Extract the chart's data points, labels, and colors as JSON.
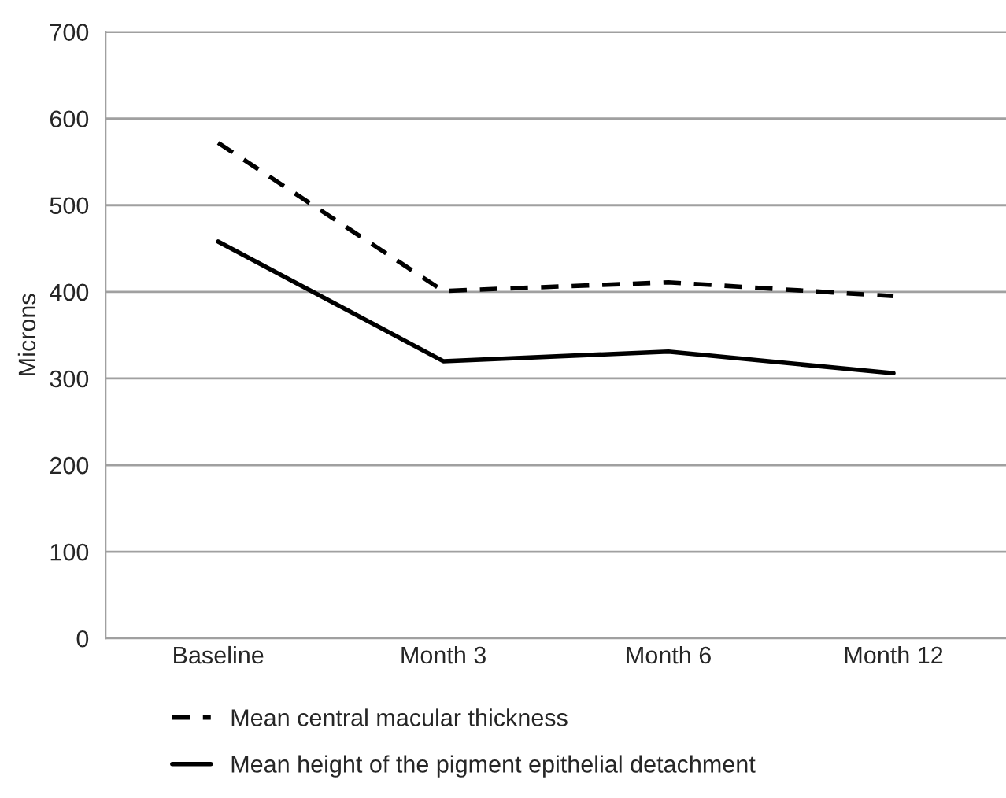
{
  "chart_data": {
    "type": "line",
    "ylabel": "Microns",
    "categories": [
      "Baseline",
      "Month 3",
      "Month 6",
      "Month 12"
    ],
    "series": [
      {
        "name": "Mean central macular thickness",
        "color": "#000000",
        "line_style": "dashed",
        "values": [
          572,
          401,
          411,
          395
        ]
      },
      {
        "name": "Mean height of the pigment epithelial detachment",
        "color": "#000000",
        "line_style": "solid",
        "values": [
          458,
          320,
          331,
          306
        ]
      }
    ],
    "ylim": [
      0,
      700
    ],
    "yticks": [
      0,
      100,
      200,
      300,
      400,
      500,
      600,
      700
    ],
    "grid": "y",
    "legend": "bottom",
    "marker": "none"
  }
}
